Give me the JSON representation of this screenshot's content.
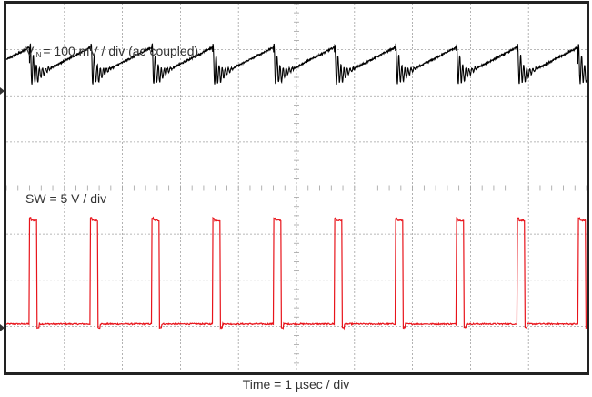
{
  "chart_data": {
    "type": "line",
    "title": "",
    "xlabel": "Time = 1 µsec / div",
    "grid": true,
    "divisions": {
      "x": 10,
      "y": 8
    },
    "colors": {
      "vin": "#000000",
      "sw": "#e8141b",
      "grid": "#a0a0a0",
      "frame": "#222222"
    },
    "series": [
      {
        "name": "VIN",
        "label_main": "V",
        "label_sub": "IN",
        "label_rest": "= 100 mV / div (ac coupled)",
        "scale": "100 mV / div",
        "coupling": "ac",
        "baseline_div": 6.8,
        "sawtooth_rise_div": 0.6,
        "ringing_div": 0.5
      },
      {
        "name": "SW",
        "label_text": "SW = 5 V / div",
        "scale": "5 V / div",
        "low_div": 1.05,
        "high_div": 3.3
      }
    ],
    "switching": {
      "period_us": 1.05,
      "pulse_width_us": 0.13,
      "edges_us": [
        0.4,
        1.45,
        2.5,
        3.55,
        4.6,
        5.65,
        6.7,
        7.75,
        8.8,
        9.85
      ],
      "time_span_us": 10
    }
  }
}
